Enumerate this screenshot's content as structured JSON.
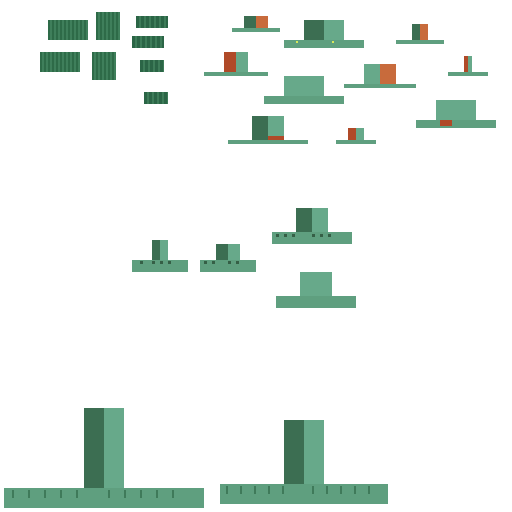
{
  "palette": {
    "background": "#ffffff",
    "green_dark": "#3c6e52",
    "green_light": "#67a98a",
    "green_base": "#5f9f7f",
    "accent_orange": "#b04a28"
  },
  "sprites": [
    {
      "kind": "tile",
      "id": "tile-1"
    },
    {
      "kind": "tile",
      "id": "tile-2"
    },
    {
      "kind": "tile",
      "id": "tile-3"
    },
    {
      "kind": "tile",
      "id": "tile-4"
    },
    {
      "kind": "tile",
      "id": "tile-5"
    },
    {
      "kind": "tile",
      "id": "tile-6"
    },
    {
      "kind": "tile",
      "id": "tile-7"
    },
    {
      "kind": "tile",
      "id": "tile-8"
    },
    {
      "kind": "building",
      "id": "building-small-1"
    },
    {
      "kind": "building",
      "id": "building-wide-1"
    },
    {
      "kind": "building",
      "id": "building-tiny-1"
    },
    {
      "kind": "building",
      "id": "building-small-2"
    },
    {
      "kind": "building",
      "id": "building-block-1"
    },
    {
      "kind": "building",
      "id": "building-med-1"
    },
    {
      "kind": "building",
      "id": "building-tiny-2"
    },
    {
      "kind": "building",
      "id": "building-med-2"
    },
    {
      "kind": "building",
      "id": "building-wide-2"
    },
    {
      "kind": "building",
      "id": "building-tiny-3"
    },
    {
      "kind": "building",
      "id": "building-mid-1"
    },
    {
      "kind": "building",
      "id": "building-mid-2"
    },
    {
      "kind": "building",
      "id": "building-mid-3"
    },
    {
      "kind": "building",
      "id": "building-mid-4"
    },
    {
      "kind": "building",
      "id": "building-large-1"
    },
    {
      "kind": "building",
      "id": "building-large-2"
    }
  ]
}
